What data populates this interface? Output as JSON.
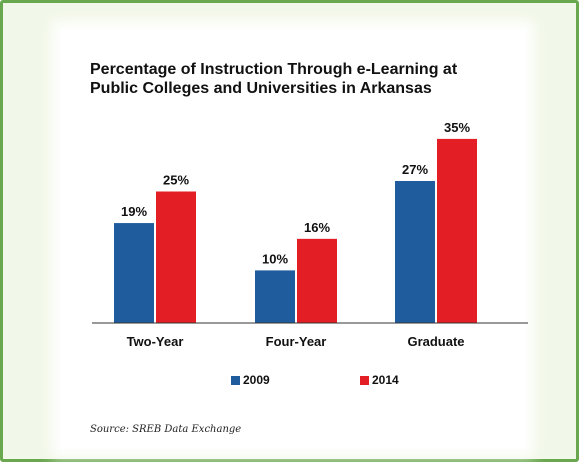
{
  "chart_data": {
    "type": "bar",
    "title_lines": [
      "Percentage of Instruction Through e-Learning at",
      "Public Colleges and Universities in Arkansas"
    ],
    "categories": [
      "Two-Year",
      "Four-Year",
      "Graduate"
    ],
    "series": [
      {
        "name": "2009",
        "color": "#1f5c9e",
        "values": [
          19,
          10,
          27
        ],
        "labels": [
          "19%",
          "10%",
          "27%"
        ]
      },
      {
        "name": "2014",
        "color": "#e31e24",
        "values": [
          25,
          16,
          35
        ],
        "labels": [
          "25%",
          "16%",
          "35%"
        ]
      }
    ],
    "ylim": [
      0,
      40
    ],
    "grid": false,
    "legend_position": "bottom",
    "source": "Source: SREB Data Exchange"
  }
}
